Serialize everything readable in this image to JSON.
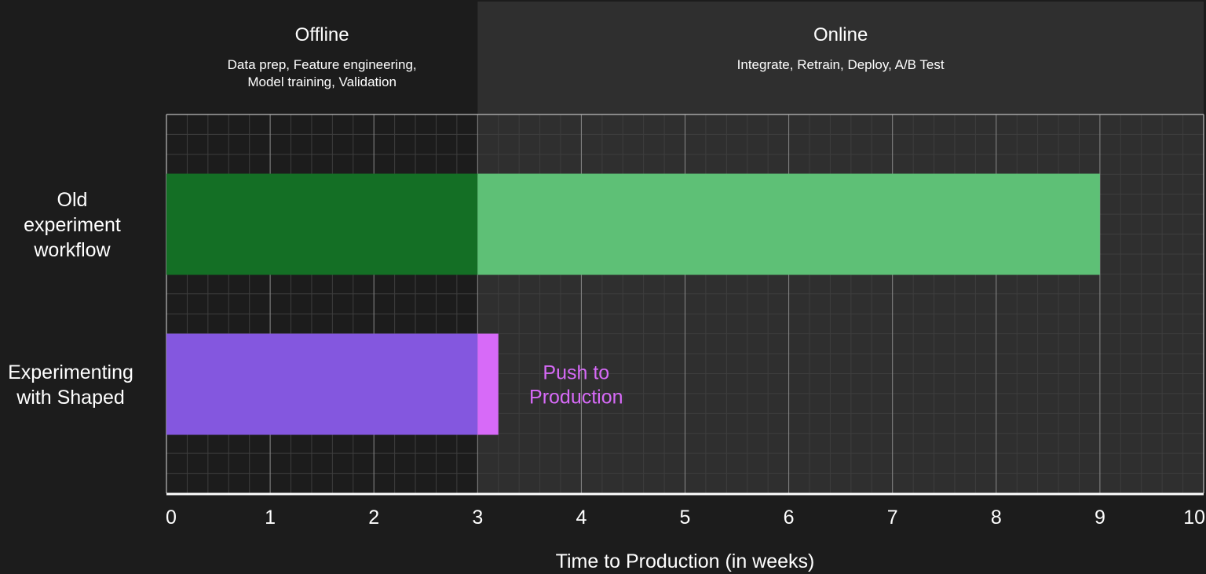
{
  "colors": {
    "background": "#1c1c1c",
    "online_region": "#2f2f2f",
    "grid_minor": "#3e3e3e",
    "grid_major": "#8a8a8a",
    "old_offline": "#146f25",
    "old_online": "#5ec076",
    "shaped_offline": "#8457df",
    "shaped_push": "#d76af8"
  },
  "chart_data": {
    "type": "bar",
    "orientation": "horizontal",
    "stacked": true,
    "xlabel": "Time to Production (in weeks)",
    "xlim": [
      0,
      10
    ],
    "xticks": [
      "0",
      "1",
      "2",
      "3",
      "4",
      "5",
      "6",
      "7",
      "8",
      "9",
      "10"
    ],
    "grid": true,
    "phases": [
      {
        "name": "Offline",
        "description": [
          "Data prep, Feature engineering,",
          "Model training, Validation"
        ],
        "start": 0,
        "end": 3
      },
      {
        "name": "Online",
        "description": [
          "Integrate, Retrain, Deploy, A/B Test"
        ],
        "start": 3,
        "end": 10
      }
    ],
    "categories": [
      {
        "label": [
          "Old",
          "experiment",
          "workflow"
        ]
      },
      {
        "label": [
          "Experimenting",
          "with Shaped"
        ]
      }
    ],
    "segments": [
      {
        "row": 0,
        "start": 0,
        "end": 3,
        "color": "#146f25"
      },
      {
        "row": 0,
        "start": 3,
        "end": 9,
        "color": "#5ec076"
      },
      {
        "row": 1,
        "start": 0,
        "end": 3,
        "color": "#8457df"
      },
      {
        "row": 1,
        "start": 3,
        "end": 3.2,
        "color": "#d76af8"
      }
    ],
    "annotations": [
      {
        "row": 1,
        "x": 3.95,
        "lines": [
          "Push to",
          "Production"
        ],
        "color": "#d76af8"
      }
    ]
  }
}
